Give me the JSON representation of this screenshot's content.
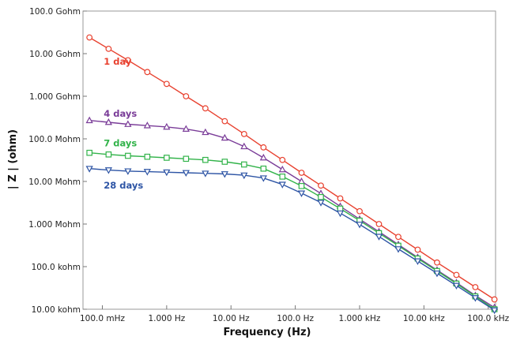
{
  "chart_data": {
    "type": "line",
    "xlabel": "Frequency (Hz)",
    "ylabel": "| Z | (ohm)",
    "x_scale": "log",
    "y_scale": "log",
    "xlim": [
      0.05,
      130000
    ],
    "ylim": [
      10000,
      100000000000
    ],
    "grid": false,
    "x_ticks": [
      {
        "value": 0.1,
        "label": "100.0 mHz"
      },
      {
        "value": 1,
        "label": "1.000 Hz"
      },
      {
        "value": 10,
        "label": "10.00 Hz"
      },
      {
        "value": 100,
        "label": "100.0 Hz"
      },
      {
        "value": 1000,
        "label": "1.000 kHz"
      },
      {
        "value": 10000,
        "label": "10.00 kHz"
      },
      {
        "value": 100000,
        "label": "100.0 kHz"
      }
    ],
    "y_ticks": [
      {
        "value": 10000,
        "label": "10.00 kohm"
      },
      {
        "value": 100000,
        "label": "100.0 kohm"
      },
      {
        "value": 1000000,
        "label": "1.000 Mohm"
      },
      {
        "value": 10000000,
        "label": "10.00 Mohm"
      },
      {
        "value": 100000000,
        "label": "100.0 Mohm"
      },
      {
        "value": 1000000000,
        "label": "1.000 Gohm"
      },
      {
        "value": 10000000000,
        "label": "10.00 Gohm"
      },
      {
        "value": 100000000000,
        "label": "100.0 Gohm"
      }
    ],
    "x": [
      0.063,
      0.125,
      0.25,
      0.5,
      1,
      2,
      4,
      8,
      16,
      32,
      63,
      125,
      250,
      500,
      1000,
      2000,
      4000,
      8000,
      16000,
      32000,
      63000,
      125000
    ],
    "series": [
      {
        "name": "1 day",
        "color": "#e8412f",
        "marker": "circle",
        "label_at": [
          0.105,
          5500000000.0
        ],
        "values": [
          24000000000.0,
          13000000000.0,
          7000000000.0,
          3700000000.0,
          1950000000.0,
          1000000000.0,
          520000000.0,
          260000000.0,
          130000000.0,
          63000000.0,
          32000000.0,
          16000000.0,
          8000000.0,
          4000000.0,
          2000000.0,
          1000000.0,
          500000.0,
          250000.0,
          125000.0,
          64000.0,
          33000.0,
          17000.0
        ]
      },
      {
        "name": "4 days",
        "color": "#7a3c98",
        "marker": "triangle-up",
        "label_at": [
          0.105,
          330000000.0
        ],
        "values": [
          270000000.0,
          245000000.0,
          220000000.0,
          205000000.0,
          190000000.0,
          170000000.0,
          142000000.0,
          105000000.0,
          66000000.0,
          36000000.0,
          19000000.0,
          10000000.0,
          5200000.0,
          2600000.0,
          1300000.0,
          660000.0,
          330000.0,
          165000.0,
          83000.0,
          42000.0,
          21000.0,
          11000.0
        ]
      },
      {
        "name": "7 days",
        "color": "#32b34a",
        "marker": "square",
        "label_at": [
          0.105,
          66000000.0
        ],
        "values": [
          47000000.0,
          43000000.0,
          40000000.0,
          38000000.0,
          36000000.0,
          34000000.0,
          32000000.0,
          29000000.0,
          25000000.0,
          20000000.0,
          13000000.0,
          7800000.0,
          4300000.0,
          2300000.0,
          1200000.0,
          610000.0,
          310000.0,
          155000.0,
          79000.0,
          40000.0,
          20000.0,
          10000.0
        ]
      },
      {
        "name": "28 days",
        "color": "#2e55a5",
        "marker": "triangle-down",
        "label_at": [
          0.105,
          6800000.0
        ],
        "values": [
          20000000.0,
          18500000.0,
          17500000.0,
          17000000.0,
          16500000.0,
          16000000.0,
          15500000.0,
          15000000.0,
          14000000.0,
          12000000.0,
          8500000.0,
          5300000.0,
          3200000.0,
          1800000.0,
          980000.0,
          510000.0,
          260000.0,
          135000.0,
          70000.0,
          36000.0,
          18500.0,
          9500.0
        ]
      }
    ]
  }
}
